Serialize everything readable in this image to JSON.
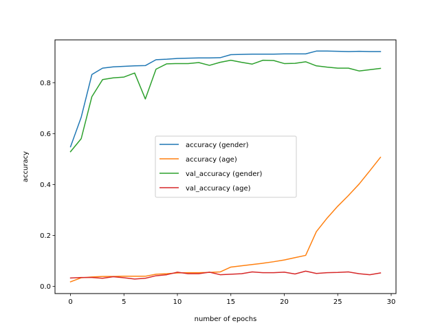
{
  "chart_data": {
    "type": "line",
    "title": "",
    "xlabel": "number of epochs",
    "ylabel": "accuracy",
    "xlim": [
      -1.45,
      30.45
    ],
    "ylim": [
      -0.028,
      0.968
    ],
    "xticks": [
      0,
      5,
      10,
      15,
      20,
      25,
      30
    ],
    "xtick_labels": [
      "0",
      "5",
      "10",
      "15",
      "20",
      "25",
      "30"
    ],
    "yticks": [
      0.0,
      0.2,
      0.4,
      0.6,
      0.8
    ],
    "ytick_labels": [
      "0.0",
      "0.2",
      "0.4",
      "0.6",
      "0.8"
    ],
    "grid": false,
    "legend_position": "center",
    "x": [
      0,
      1,
      2,
      3,
      4,
      5,
      6,
      7,
      8,
      9,
      10,
      11,
      12,
      13,
      14,
      15,
      16,
      17,
      18,
      19,
      20,
      21,
      22,
      23,
      24,
      25,
      26,
      27,
      28,
      29
    ],
    "series": [
      {
        "name": "accuracy (gender)",
        "color": "#1f77b4",
        "values": [
          0.548,
          0.664,
          0.832,
          0.857,
          0.862,
          0.864,
          0.866,
          0.867,
          0.89,
          0.892,
          0.895,
          0.896,
          0.897,
          0.897,
          0.898,
          0.91,
          0.911,
          0.912,
          0.912,
          0.912,
          0.913,
          0.913,
          0.913,
          0.924,
          0.924,
          0.923,
          0.922,
          0.923,
          0.922,
          0.922
        ]
      },
      {
        "name": "accuracy (age)",
        "color": "#ff7f0e",
        "values": [
          0.018,
          0.034,
          0.037,
          0.039,
          0.039,
          0.04,
          0.04,
          0.04,
          0.048,
          0.05,
          0.053,
          0.054,
          0.054,
          0.055,
          0.057,
          0.076,
          0.081,
          0.086,
          0.091,
          0.097,
          0.104,
          0.113,
          0.122,
          0.215,
          0.268,
          0.315,
          0.357,
          0.402,
          0.454,
          0.507
        ]
      },
      {
        "name": "val_accuracy (gender)",
        "color": "#2ca02c",
        "values": [
          0.529,
          0.58,
          0.745,
          0.812,
          0.819,
          0.822,
          0.838,
          0.736,
          0.853,
          0.874,
          0.875,
          0.875,
          0.879,
          0.868,
          0.88,
          0.888,
          0.88,
          0.873,
          0.888,
          0.887,
          0.875,
          0.876,
          0.882,
          0.866,
          0.861,
          0.857,
          0.857,
          0.846,
          0.851,
          0.856
        ]
      },
      {
        "name": "val_accuracy (age)",
        "color": "#d62728",
        "values": [
          0.033,
          0.035,
          0.035,
          0.032,
          0.038,
          0.034,
          0.029,
          0.032,
          0.042,
          0.046,
          0.056,
          0.05,
          0.05,
          0.056,
          0.046,
          0.048,
          0.05,
          0.057,
          0.054,
          0.054,
          0.056,
          0.049,
          0.06,
          0.051,
          0.054,
          0.055,
          0.057,
          0.05,
          0.046,
          0.053
        ]
      }
    ]
  }
}
